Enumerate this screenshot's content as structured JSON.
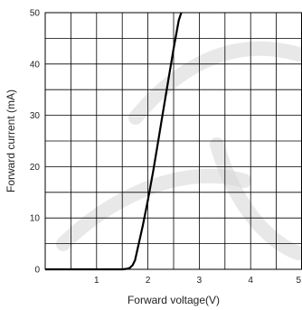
{
  "chart_data": {
    "type": "line",
    "title": "",
    "xlabel": "Forward voltage(V)",
    "ylabel": "Forward current (mA)",
    "xlim": [
      0,
      5
    ],
    "ylim": [
      0,
      50
    ],
    "x_ticks": [
      1,
      2,
      3,
      4,
      5
    ],
    "x_tick_labels": [
      "1",
      "2",
      "3",
      "4",
      "5"
    ],
    "y_ticks": [
      0,
      10,
      20,
      30,
      40,
      50
    ],
    "y_tick_labels": [
      "0",
      "10",
      "20",
      "30",
      "40",
      "50"
    ],
    "grid": true,
    "x_grid_step": 0.5,
    "y_grid_step": 5,
    "series_color": "#000000",
    "series": [
      {
        "x": [
          0,
          0.5,
          1.0,
          1.5,
          1.6,
          1.65,
          1.7,
          1.75,
          1.8,
          1.9,
          2.0,
          2.1,
          2.2,
          2.3,
          2.4,
          2.5,
          2.6,
          2.65
        ],
        "y": [
          0,
          0,
          0,
          0,
          0.1,
          0.3,
          0.8,
          1.8,
          4.0,
          8.5,
          13.5,
          19.0,
          25.0,
          31.0,
          37.0,
          43.0,
          48.5,
          50
        ]
      }
    ]
  }
}
